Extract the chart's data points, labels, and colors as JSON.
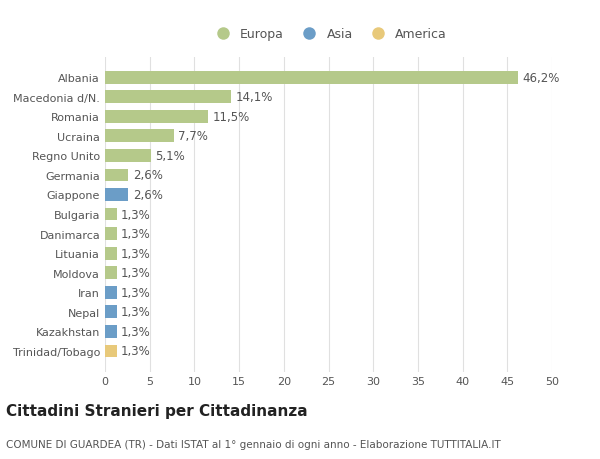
{
  "categories": [
    "Albania",
    "Macedonia d/N.",
    "Romania",
    "Ucraina",
    "Regno Unito",
    "Germania",
    "Giappone",
    "Bulgaria",
    "Danimarca",
    "Lituania",
    "Moldova",
    "Iran",
    "Nepal",
    "Kazakhstan",
    "Trinidad/Tobago"
  ],
  "values": [
    46.2,
    14.1,
    11.5,
    7.7,
    5.1,
    2.6,
    2.6,
    1.3,
    1.3,
    1.3,
    1.3,
    1.3,
    1.3,
    1.3,
    1.3
  ],
  "colors": [
    "#b5c98a",
    "#b5c98a",
    "#b5c98a",
    "#b5c98a",
    "#b5c98a",
    "#b5c98a",
    "#6b9dc7",
    "#b5c98a",
    "#b5c98a",
    "#b5c98a",
    "#b5c98a",
    "#6b9dc7",
    "#6b9dc7",
    "#6b9dc7",
    "#e8c97a"
  ],
  "labels": [
    "46,2%",
    "14,1%",
    "11,5%",
    "7,7%",
    "5,1%",
    "2,6%",
    "2,6%",
    "1,3%",
    "1,3%",
    "1,3%",
    "1,3%",
    "1,3%",
    "1,3%",
    "1,3%",
    "1,3%"
  ],
  "legend": [
    {
      "label": "Europa",
      "color": "#b5c98a"
    },
    {
      "label": "Asia",
      "color": "#6b9dc7"
    },
    {
      "label": "America",
      "color": "#e8c97a"
    }
  ],
  "title": "Cittadini Stranieri per Cittadinanza",
  "subtitle": "COMUNE DI GUARDEA (TR) - Dati ISTAT al 1° gennaio di ogni anno - Elaborazione TUTTITALIA.IT",
  "xlim": [
    0,
    50
  ],
  "xticks": [
    0,
    5,
    10,
    15,
    20,
    25,
    30,
    35,
    40,
    45,
    50
  ],
  "background_color": "#ffffff",
  "grid_color": "#e0e0e0",
  "bar_height": 0.65,
  "label_fontsize": 8.5,
  "tick_fontsize": 8,
  "title_fontsize": 11,
  "subtitle_fontsize": 7.5
}
